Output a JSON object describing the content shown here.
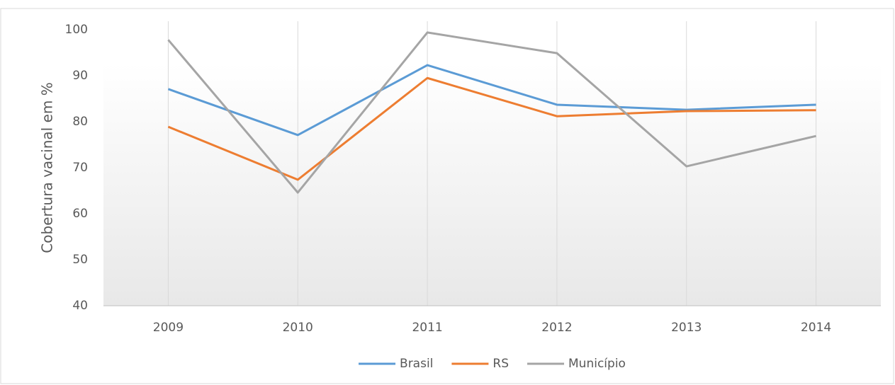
{
  "chart_data": {
    "type": "line",
    "y_label": "Cobertura vacinal em %",
    "categories": [
      "2009",
      "2010",
      "2011",
      "2012",
      "2013",
      "2014"
    ],
    "series": [
      {
        "name": "Brasil",
        "color": "#5b9bd5",
        "values": [
          87.1,
          77.1,
          92.3,
          83.7,
          82.6,
          83.7
        ]
      },
      {
        "name": "RS",
        "color": "#ed7d31",
        "values": [
          78.9,
          67.4,
          89.5,
          81.2,
          82.3,
          82.5
        ]
      },
      {
        "name": "Município",
        "color": "#a5a5a5",
        "values": [
          97.8,
          64.6,
          99.4,
          94.9,
          70.3,
          76.9
        ]
      }
    ],
    "ylim": [
      40,
      100
    ],
    "yticks": [
      40,
      50,
      60,
      70,
      80,
      90,
      100
    ],
    "vertical_grid": true,
    "legend": "bottom"
  }
}
